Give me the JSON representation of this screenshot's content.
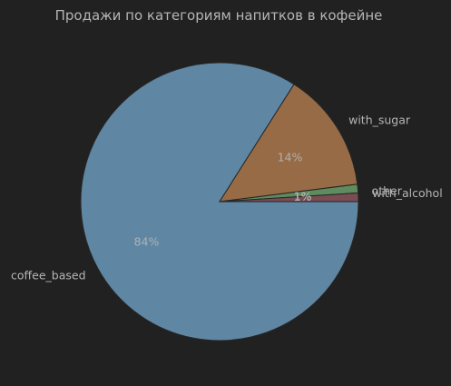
{
  "chart_data": {
    "type": "pie",
    "title": "Продажи по категориям напитков в кофейне",
    "categories": [
      "coffee_based",
      "with_sugar",
      "other",
      "with_alcohol"
    ],
    "values": [
      84,
      14,
      1,
      1
    ],
    "value_labels": [
      "84%",
      "14%",
      "1%",
      "1%"
    ],
    "colors": [
      "#5f87a4",
      "#976b46",
      "#5e8c5e",
      "#7a4c54"
    ],
    "start_angle_deg": 0,
    "direction": "clockwise",
    "legend": "none"
  },
  "colors": {
    "background": "#212121",
    "text": "#b5b5b5",
    "edge": "#262626"
  }
}
